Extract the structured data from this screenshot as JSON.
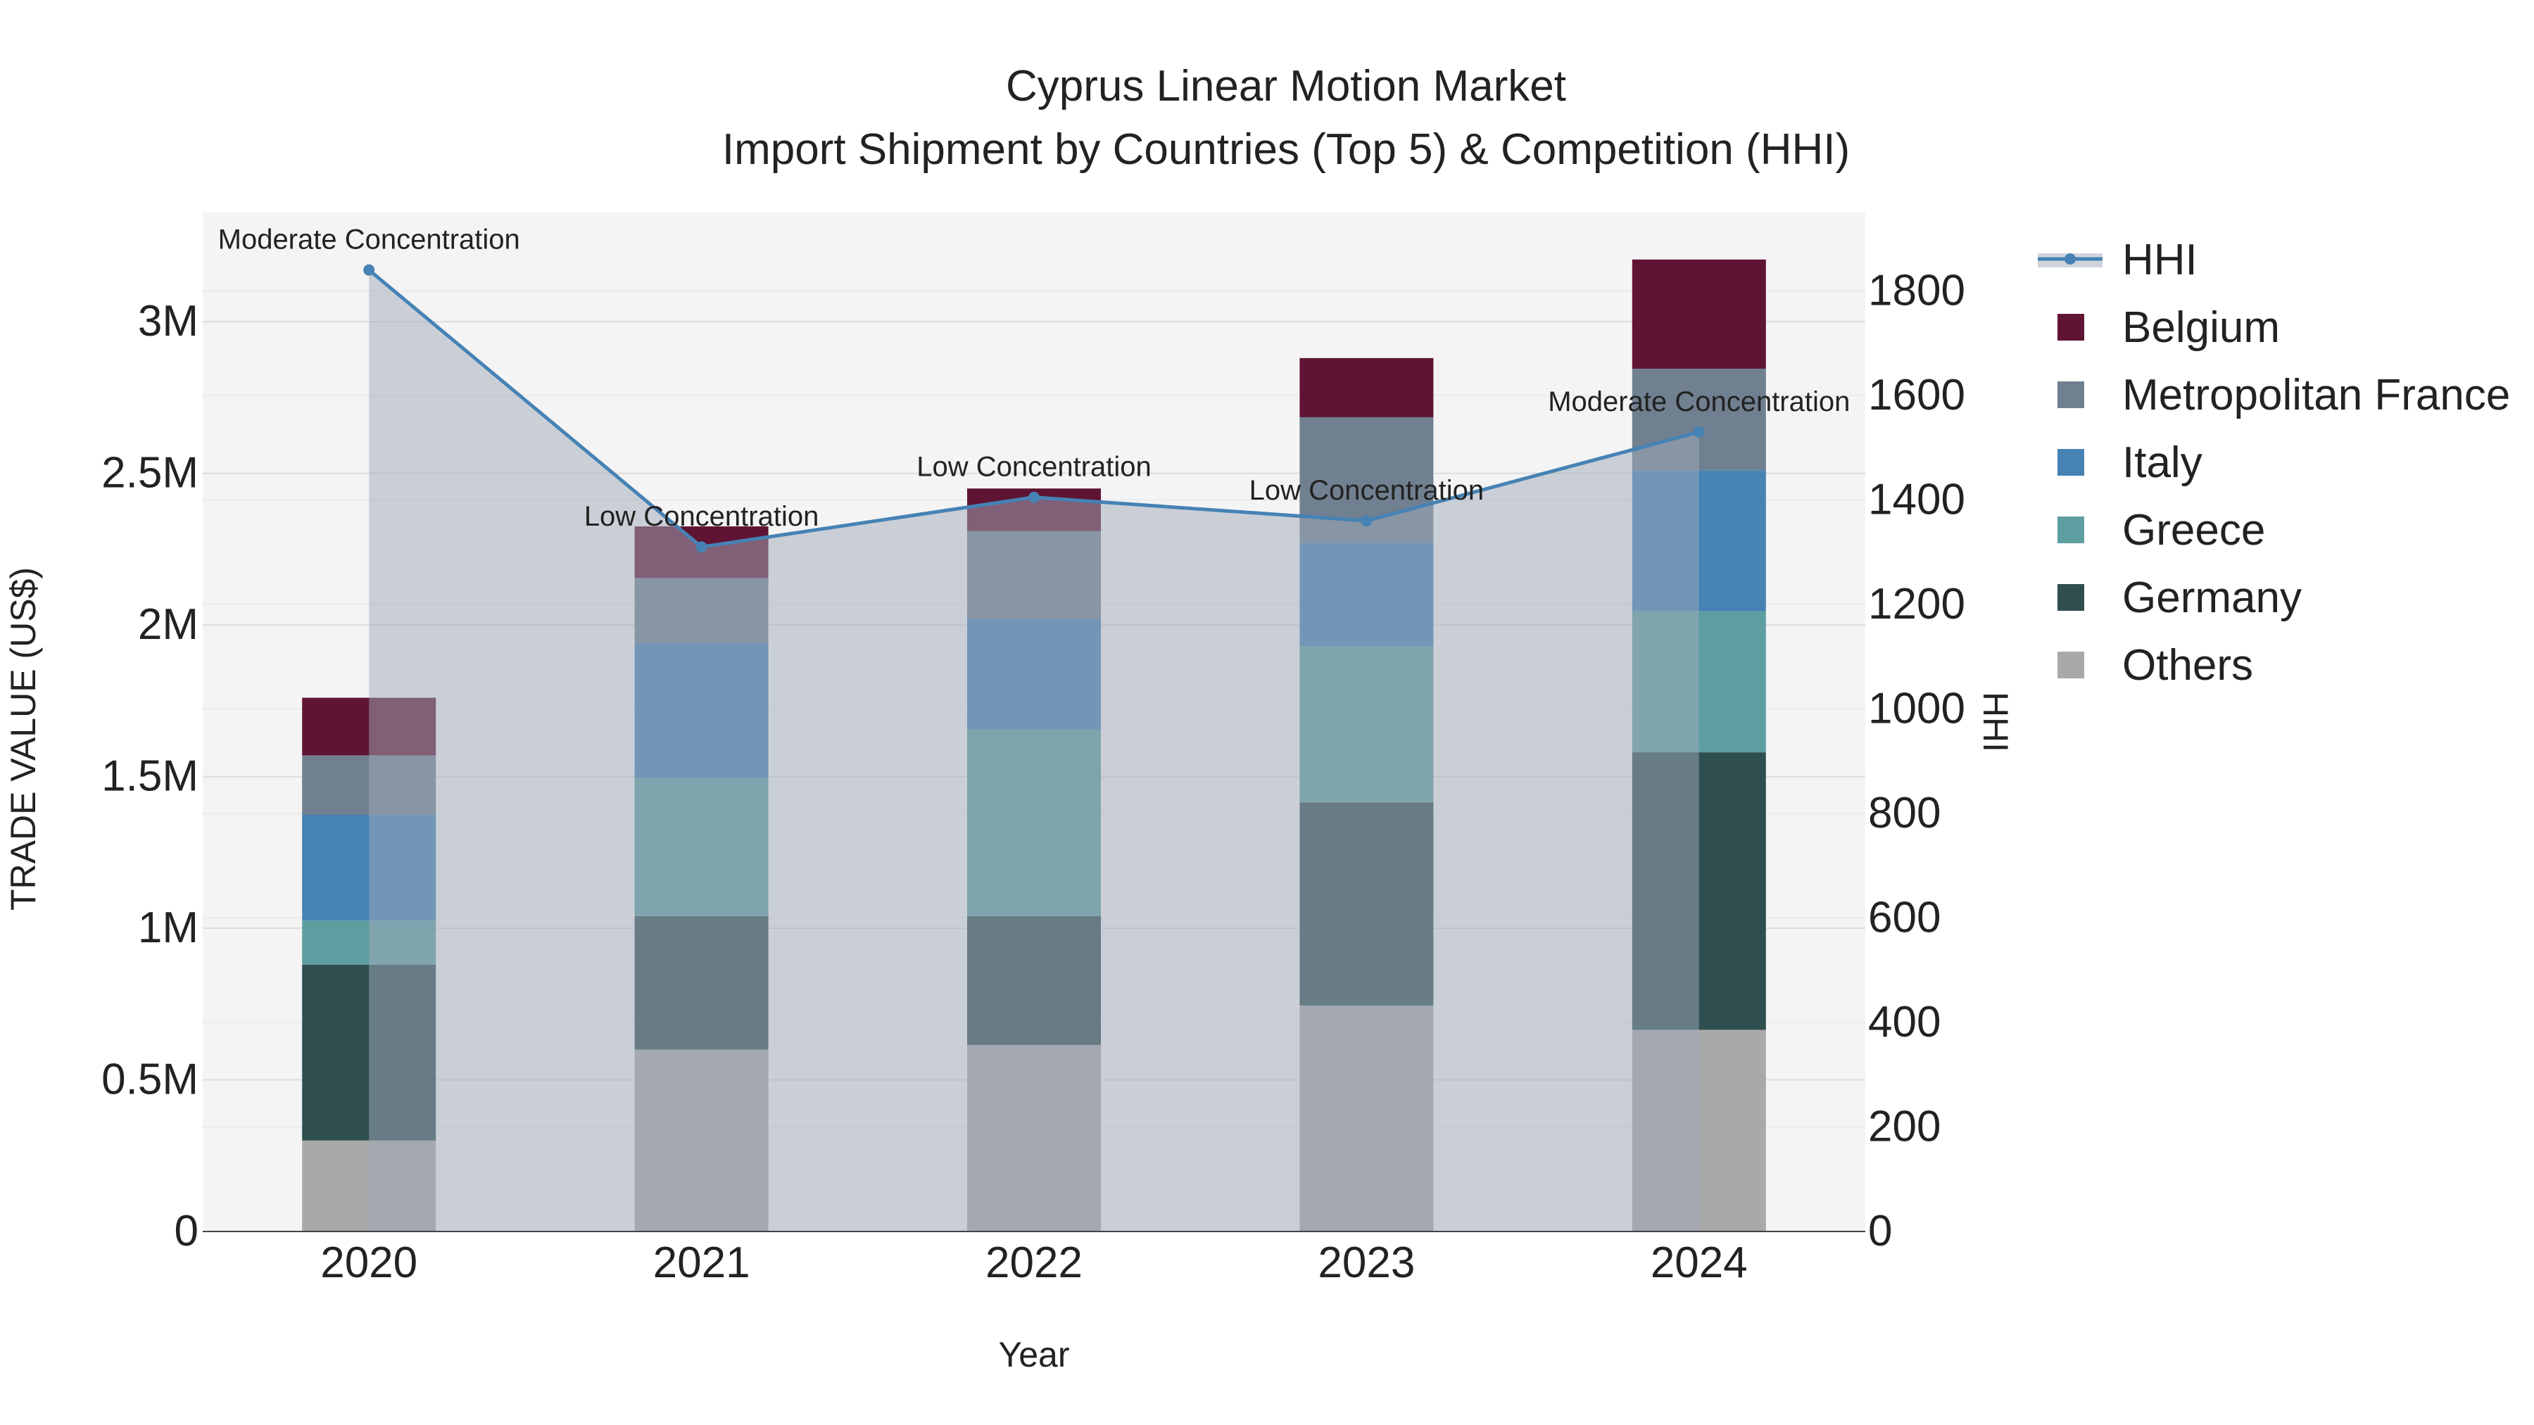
{
  "chart_data": {
    "type": "bar",
    "stacked": true,
    "title": "Cyprus Linear Motion Market",
    "subtitle": "Import Shipment by Countries (Top 5) & Competition (HHI)",
    "xlabel": "Year",
    "ylabel": "TRADE VALUE (US$)",
    "y2label": "HHI",
    "categories": [
      "2020",
      "2021",
      "2022",
      "2023",
      "2024"
    ],
    "ylim": [
      0,
      3360000
    ],
    "y2lim": [
      0,
      1950
    ],
    "yticks": [
      0,
      500000,
      1000000,
      1500000,
      2000000,
      2500000,
      3000000
    ],
    "ytick_labels": [
      "0",
      "0.5M",
      "1M",
      "1.5M",
      "2M",
      "2.5M",
      "3M"
    ],
    "y2ticks": [
      0,
      200,
      400,
      600,
      800,
      1000,
      1200,
      1400,
      1600,
      1800
    ],
    "y2tick_labels": [
      "0",
      "200",
      "400",
      "600",
      "800",
      "1000",
      "1200",
      "1400",
      "1600",
      "1800"
    ],
    "series": [
      {
        "name": "Others",
        "color": "#a9a9a9",
        "values": [
          300000,
          600000,
          615000,
          745000,
          665000
        ]
      },
      {
        "name": "Germany",
        "color": "#2f4f4f",
        "values": [
          580000,
          440000,
          425000,
          670000,
          915000
        ]
      },
      {
        "name": "Greece",
        "color": "#5f9ea0",
        "values": [
          145000,
          455000,
          615000,
          515000,
          465000
        ]
      },
      {
        "name": "Italy",
        "color": "#4682b4",
        "values": [
          350000,
          445000,
          365000,
          340000,
          465000
        ]
      },
      {
        "name": "Metropolitan France",
        "color": "#708090",
        "values": [
          195000,
          215000,
          290000,
          415000,
          335000
        ]
      },
      {
        "name": "Belgium",
        "color": "#601434",
        "values": [
          190000,
          170000,
          140000,
          195000,
          360000
        ]
      }
    ],
    "hhi": {
      "name": "HHI",
      "color": "#4682b4",
      "values": [
        1840,
        1310,
        1405,
        1360,
        1530
      ],
      "labels": [
        "Moderate Concentration",
        "Low Concentration",
        "Low Concentration",
        "Low Concentration",
        "Moderate Concentration"
      ]
    },
    "legend": [
      "HHI",
      "Belgium",
      "Metropolitan France",
      "Italy",
      "Greece",
      "Germany",
      "Others"
    ],
    "legend_position": "right"
  }
}
